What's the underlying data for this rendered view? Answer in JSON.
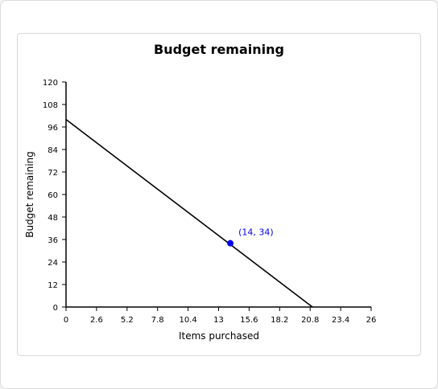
{
  "chart_data": {
    "type": "line",
    "title": "Budget remaining",
    "xlabel": "Items purchased",
    "ylabel": "Budget remaining",
    "xlim": [
      0,
      26
    ],
    "ylim": [
      0,
      120
    ],
    "x_ticks": [
      0,
      2.6,
      5.2,
      7.8,
      10.4,
      13,
      15.6,
      18.2,
      20.8,
      23.4,
      26
    ],
    "x_tick_labels": [
      "0",
      "2.6",
      "5.2",
      "7.8",
      "10.4",
      "13",
      "15.6",
      "18.2",
      "20.8",
      "23.4",
      "26"
    ],
    "y_ticks": [
      0,
      12,
      24,
      36,
      48,
      60,
      72,
      84,
      96,
      108,
      120
    ],
    "y_tick_labels": [
      "0",
      "12",
      "24",
      "36",
      "48",
      "60",
      "72",
      "84",
      "96",
      "108",
      "120"
    ],
    "grid": false,
    "series": [
      {
        "x": [
          0,
          21
        ],
        "y": [
          100,
          0
        ],
        "color": "#000000"
      }
    ],
    "highlight_point": {
      "x": 14,
      "y": 34,
      "label": "(14, 34)",
      "color": "#0000ee"
    }
  }
}
